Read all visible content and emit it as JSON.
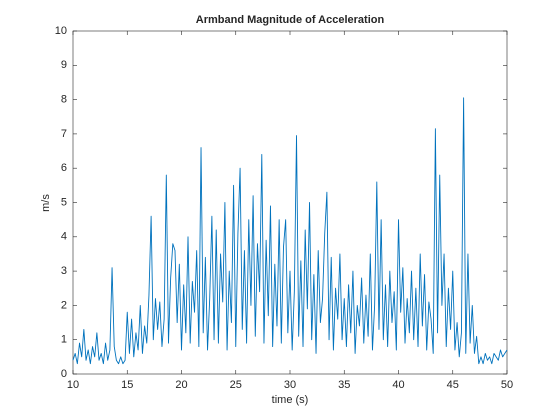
{
  "chart_data": {
    "type": "line",
    "title": "Armband Magnitude of Acceleration",
    "x_label": "time (s)",
    "y_label": "m/s",
    "color": "#0072bd",
    "xlim": [
      10,
      50
    ],
    "xticks": [
      10,
      15,
      20,
      25,
      30,
      35,
      40,
      45,
      50
    ],
    "ylim": [
      0,
      10
    ],
    "yticks": [
      0,
      1,
      2,
      3,
      4,
      5,
      6,
      7,
      8,
      9,
      10
    ],
    "x": [
      10,
      10.2,
      10.4,
      10.6,
      10.8,
      11,
      11.2,
      11.4,
      11.6,
      11.8,
      12,
      12.2,
      12.4,
      12.6,
      12.8,
      13,
      13.2,
      13.4,
      13.6,
      13.8,
      14,
      14.2,
      14.4,
      14.6,
      14.8,
      15,
      15.2,
      15.4,
      15.6,
      15.8,
      16,
      16.2,
      16.4,
      16.6,
      16.8,
      17,
      17.2,
      17.4,
      17.6,
      17.8,
      18,
      18.2,
      18.4,
      18.6,
      18.8,
      19,
      19.2,
      19.4,
      19.6,
      19.8,
      20,
      20.2,
      20.4,
      20.6,
      20.8,
      21,
      21.2,
      21.4,
      21.6,
      21.8,
      22,
      22.2,
      22.4,
      22.6,
      22.8,
      23,
      23.2,
      23.4,
      23.6,
      23.8,
      24,
      24.2,
      24.4,
      24.6,
      24.8,
      25,
      25.2,
      25.4,
      25.6,
      25.8,
      26,
      26.2,
      26.4,
      26.6,
      26.8,
      27,
      27.2,
      27.4,
      27.6,
      27.8,
      28,
      28.2,
      28.4,
      28.6,
      28.8,
      29,
      29.2,
      29.4,
      29.6,
      29.8,
      30,
      30.2,
      30.4,
      30.6,
      30.8,
      31,
      31.2,
      31.4,
      31.6,
      31.8,
      32,
      32.2,
      32.4,
      32.6,
      32.8,
      33,
      33.2,
      33.4,
      33.6,
      33.8,
      34,
      34.2,
      34.4,
      34.6,
      34.8,
      35,
      35.2,
      35.4,
      35.6,
      35.8,
      36,
      36.2,
      36.4,
      36.6,
      36.8,
      37,
      37.2,
      37.4,
      37.6,
      37.8,
      38,
      38.2,
      38.4,
      38.6,
      38.8,
      39,
      39.2,
      39.4,
      39.6,
      39.8,
      40,
      40.2,
      40.4,
      40.6,
      40.8,
      41,
      41.2,
      41.4,
      41.6,
      41.8,
      42,
      42.2,
      42.4,
      42.6,
      42.8,
      43,
      43.2,
      43.4,
      43.6,
      43.8,
      44,
      44.2,
      44.4,
      44.6,
      44.8,
      45,
      45.2,
      45.4,
      45.6,
      45.8,
      46,
      46.2,
      46.4,
      46.6,
      46.8,
      47,
      47.2,
      47.4,
      47.6,
      47.8,
      48,
      48.2,
      48.4,
      48.6,
      48.8,
      49,
      49.2,
      49.4,
      49.6,
      49.8,
      50
    ],
    "values": [
      0.4,
      0.6,
      0.3,
      0.9,
      0.5,
      1.3,
      0.4,
      0.7,
      0.3,
      0.8,
      0.5,
      1.2,
      0.4,
      0.6,
      0.3,
      0.9,
      0.4,
      0.7,
      3.1,
      0.8,
      0.4,
      0.3,
      0.5,
      0.3,
      0.4,
      1.8,
      0.6,
      1.6,
      0.5,
      1.2,
      0.7,
      2.0,
      0.6,
      1.4,
      0.9,
      2.3,
      4.6,
      1.0,
      2.2,
      1.3,
      2.1,
      0.8,
      1.6,
      5.8,
      0.9,
      2.8,
      3.8,
      3.6,
      1.5,
      3.2,
      0.7,
      2.6,
      1.2,
      4.0,
      0.9,
      2.7,
      1.8,
      3.6,
      0.8,
      6.6,
      1.2,
      3.4,
      0.7,
      2.2,
      4.6,
      1.0,
      4.2,
      0.9,
      3.5,
      2.1,
      5.0,
      0.7,
      3.0,
      1.5,
      5.5,
      0.8,
      4.1,
      6.0,
      1.3,
      3.6,
      0.9,
      4.5,
      2.0,
      5.2,
      1.1,
      3.8,
      2.4,
      6.4,
      0.9,
      3.9,
      1.7,
      4.9,
      0.8,
      3.2,
      1.4,
      4.5,
      0.9,
      3.7,
      4.5,
      1.2,
      3.0,
      0.7,
      2.4,
      6.95,
      1.1,
      3.3,
      0.8,
      4.2,
      1.9,
      5.0,
      1.0,
      2.9,
      0.6,
      3.6,
      1.5,
      2.2,
      4.1,
      5.3,
      1.0,
      3.4,
      0.7,
      2.5,
      1.6,
      3.5,
      1.0,
      2.2,
      0.8,
      2.6,
      1.2,
      3.0,
      0.6,
      2.0,
      1.4,
      2.8,
      0.9,
      2.3,
      1.1,
      3.5,
      0.7,
      2.0,
      5.6,
      1.3,
      4.5,
      1.0,
      2.6,
      0.8,
      3.0,
      1.5,
      2.4,
      0.7,
      4.5,
      1.8,
      3.1,
      0.9,
      2.2,
      1.2,
      3.0,
      1.0,
      2.5,
      0.8,
      3.5,
      1.4,
      2.9,
      0.7,
      2.1,
      1.6,
      0.6,
      7.15,
      1.2,
      5.8,
      2.0,
      3.5,
      0.8,
      2.5,
      1.3,
      3.0,
      0.7,
      1.5,
      0.5,
      1.2,
      8.05,
      0.6,
      3.5,
      0.9,
      2.0,
      0.6,
      1.1,
      0.3,
      0.5,
      0.3,
      0.6,
      0.4,
      0.5,
      0.3,
      0.6,
      0.5,
      0.4,
      0.7,
      0.5,
      0.6,
      0.7
    ]
  }
}
